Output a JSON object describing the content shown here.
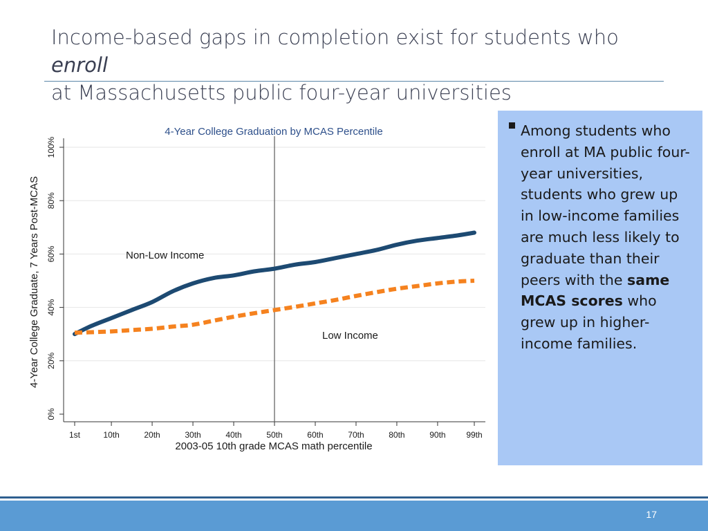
{
  "slide": {
    "title_main": "Income-based gaps in completion exist for students who ",
    "title_emph": "enroll",
    "title_line2": "at Massachusetts public four-year universities",
    "page_number": "17"
  },
  "callout": {
    "text_part1": "Among students who enroll at MA public four-year universities, students who grew up in low-income families are much less likely to graduate than their peers with the ",
    "text_bold": "same MCAS scores",
    "text_part2": " who grew up in higher-income families."
  },
  "colors": {
    "non_low_income": "#1d4a72",
    "low_income": "#f5821f",
    "callout_bg": "#a9c8f5",
    "footer": "#5a9bd4",
    "title": "#3a3f52"
  },
  "chart_data": {
    "type": "line",
    "title": "4-Year College Graduation by MCAS Percentile",
    "xlabel": "2003-05 10th grade MCAS math percentile",
    "ylabel": "4-Year College Graduate, 7 Years Post-MCAS",
    "xlim": [
      1,
      99
    ],
    "ylim": [
      0,
      1
    ],
    "x_ticks": [
      1,
      10,
      20,
      30,
      40,
      50,
      60,
      70,
      80,
      90,
      99
    ],
    "x_tick_labels": [
      "1st",
      "10th",
      "20th",
      "30th",
      "40th",
      "50th",
      "60th",
      "70th",
      "80th",
      "90th",
      "99th"
    ],
    "y_ticks": [
      0,
      0.2,
      0.4,
      0.6,
      0.8,
      1.0
    ],
    "y_tick_labels": [
      "0%",
      "20%",
      "40%",
      "60%",
      "80%",
      "100%"
    ],
    "reference_line_x": 50,
    "grid": true,
    "series": [
      {
        "name": "Non-Low Income",
        "style": "solid",
        "x": [
          1,
          5,
          10,
          15,
          20,
          25,
          30,
          35,
          40,
          45,
          50,
          55,
          60,
          65,
          70,
          75,
          80,
          85,
          90,
          95,
          99
        ],
        "y": [
          0.3,
          0.33,
          0.36,
          0.39,
          0.42,
          0.46,
          0.49,
          0.51,
          0.52,
          0.535,
          0.545,
          0.56,
          0.57,
          0.585,
          0.6,
          0.615,
          0.635,
          0.65,
          0.66,
          0.67,
          0.68
        ]
      },
      {
        "name": "Low Income",
        "style": "dashed",
        "x": [
          1,
          5,
          10,
          15,
          20,
          25,
          30,
          35,
          40,
          45,
          50,
          55,
          60,
          65,
          70,
          75,
          80,
          85,
          90,
          95,
          99
        ],
        "y": [
          0.305,
          0.307,
          0.31,
          0.315,
          0.32,
          0.328,
          0.335,
          0.35,
          0.365,
          0.378,
          0.39,
          0.402,
          0.415,
          0.428,
          0.443,
          0.457,
          0.47,
          0.48,
          0.49,
          0.497,
          0.5
        ]
      }
    ]
  }
}
